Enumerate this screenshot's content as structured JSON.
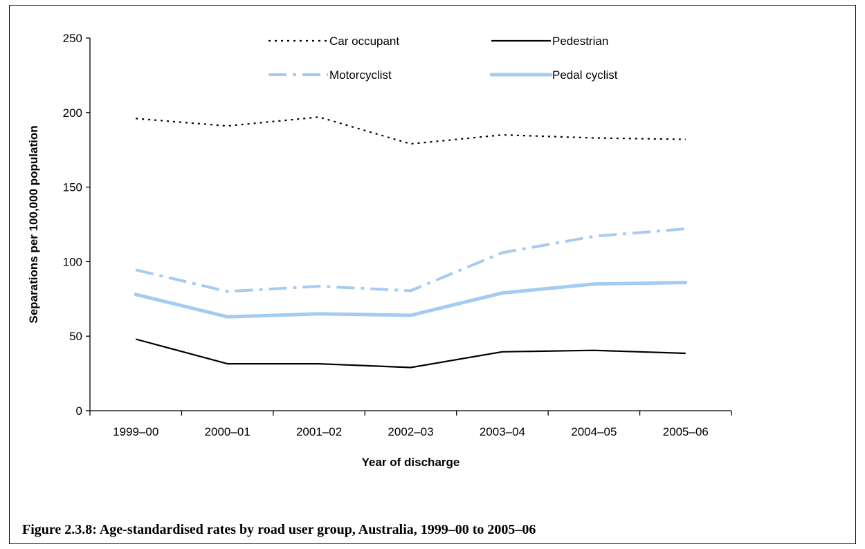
{
  "caption": "Figure 2.3.8: Age-standardised rates by road user group, Australia, 1999–00 to 2005–06",
  "chart_data": {
    "type": "line",
    "title": "",
    "xlabel": "Year of discharge",
    "ylabel": "Separations per 100,000 population",
    "ylim": [
      0,
      250
    ],
    "yticks": [
      0,
      50,
      100,
      150,
      200,
      250
    ],
    "categories": [
      "1999–00",
      "2000–01",
      "2001–02",
      "2002–03",
      "2003–04",
      "2004–05",
      "2005–06"
    ],
    "legend_position": "top",
    "grid": false,
    "series": [
      {
        "name": "Car occupant",
        "values": [
          196,
          191,
          197,
          179,
          185,
          183,
          182
        ],
        "color": "#000000",
        "style": "dotted"
      },
      {
        "name": "Pedestrian",
        "values": [
          48,
          31.5,
          31.5,
          29,
          39.5,
          40.5,
          38.5
        ],
        "color": "#000000",
        "style": "solid"
      },
      {
        "name": "Motorcyclist",
        "values": [
          94.5,
          80,
          83.5,
          80.5,
          106,
          117,
          122
        ],
        "color": "#a6cbf2",
        "style": "dashdot"
      },
      {
        "name": "Pedal cyclist",
        "values": [
          78,
          63,
          65,
          64,
          79,
          85,
          86
        ],
        "color": "#a6cbf2",
        "style": "thick"
      }
    ]
  }
}
